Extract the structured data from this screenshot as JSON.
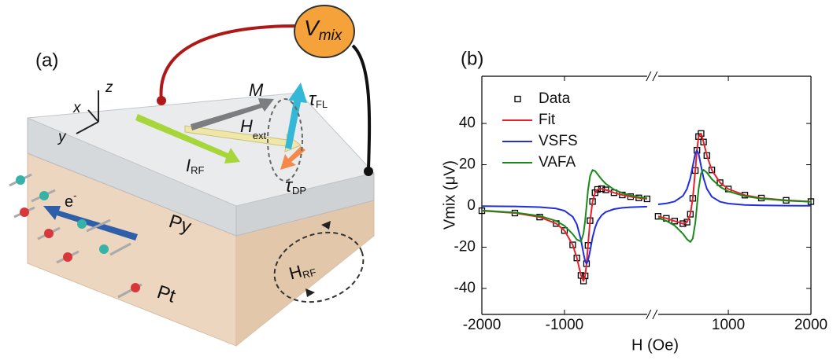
{
  "schematic": {
    "panel_label": "(a)",
    "vmix": [
      "V",
      "mix"
    ],
    "axis_x": "x",
    "axis_y": "y",
    "axis_z": "z",
    "m": "M",
    "tau_fl": [
      "τ",
      "FL"
    ],
    "h_ext": [
      "H",
      "ext"
    ],
    "i_rf": [
      "I",
      "RF"
    ],
    "tau_dp": [
      "τ",
      "DP"
    ],
    "electron": [
      "e",
      "-"
    ],
    "py": "Py",
    "pt": "Pt",
    "h_rf": [
      "H",
      "RF"
    ]
  },
  "chart_data": {
    "type": "line",
    "panel_label": "(b)",
    "x_label": "H (Oe)",
    "y_label": "Vmix (μV)",
    "xlim": [
      -2000,
      2000
    ],
    "xbreak": [
      0,
      150
    ],
    "xticks": [
      -2000,
      -1000,
      1000,
      2000
    ],
    "ylim": [
      -52.6,
      62.9
    ],
    "yticks": [
      -40,
      -20,
      0,
      20,
      40
    ],
    "legend": "upper left",
    "x": [
      -2000,
      -1600,
      -1300,
      -1100,
      -1000,
      -900,
      -850,
      -800,
      -770,
      -750,
      -733,
      -715,
      -690,
      -660,
      -630,
      -600,
      -550,
      -500,
      -400,
      -300,
      -200,
      -100,
      0,
      null,
      150,
      250,
      350,
      450,
      500,
      540,
      570,
      600,
      620,
      640,
      670,
      700,
      740,
      800,
      900,
      1000,
      1200,
      1400,
      1700,
      2000
    ],
    "series": [
      {
        "name": "Data",
        "color": "#000000",
        "marker": "square",
        "values": [
          -2.31,
          -3.44,
          -5.39,
          -8.55,
          -11.93,
          -18.87,
          -25.23,
          -33.69,
          -36.4,
          -33.91,
          -28,
          -19.15,
          -7.12,
          2.15,
          6.42,
          8.02,
          8.36,
          7.8,
          6.42,
          5.33,
          4.52,
          3.91,
          3.44,
          null,
          -5.03,
          -6.02,
          -7.35,
          -8.58,
          -7.84,
          -4.0,
          3.69,
          17.17,
          27,
          33.65,
          35.15,
          31.0,
          24.46,
          17.44,
          11.29,
          8.21,
          5.24,
          3.83,
          2.73,
          2.11
        ]
      },
      {
        "name": "Fit",
        "color": "#e8202a",
        "marker": "line",
        "values": [
          -2.31,
          -3.44,
          -5.39,
          -8.55,
          -11.93,
          -18.87,
          -25.23,
          -33.69,
          -36.4,
          -33.91,
          -28,
          -19.15,
          -7.12,
          2.15,
          6.42,
          8.02,
          8.36,
          7.8,
          6.42,
          5.33,
          4.52,
          3.91,
          3.44,
          null,
          -5.03,
          -6.02,
          -7.35,
          -8.58,
          -7.84,
          -4.0,
          3.69,
          17.17,
          27,
          33.65,
          35.15,
          31.0,
          24.46,
          17.44,
          11.29,
          8.21,
          5.24,
          3.83,
          2.73,
          2.11
        ]
      },
      {
        "name": "VSFS",
        "color": "#1f2fe0",
        "marker": "line",
        "values": [
          -0.11,
          -0.24,
          -0.55,
          -1.27,
          -2.31,
          -5.23,
          -8.92,
          -16.46,
          -23.07,
          -26.79,
          -28,
          -26.65,
          -21.72,
          -15.28,
          -10.54,
          -7.44,
          -4.49,
          -2.95,
          -1.53,
          -0.92,
          -0.62,
          -0.44,
          -0.33,
          null,
          0.76,
          1.21,
          2.18,
          4.9,
          8.31,
          13.5,
          19.42,
          25.41,
          27,
          25.41,
          19.42,
          13.5,
          8.31,
          4.45,
          2.04,
          1.15,
          0.5,
          0.28,
          0.15,
          0.09
        ]
      },
      {
        "name": "VAFA",
        "color": "#1a8a1a",
        "marker": "line",
        "values": [
          -2.2,
          -3.2,
          -4.84,
          -7.28,
          -9.62,
          -13.64,
          -16.31,
          -17.23,
          -13.33,
          -7.12,
          0,
          7.5,
          14.6,
          17.43,
          16.96,
          15.46,
          12.85,
          10.75,
          7.95,
          6.25,
          5.14,
          4.35,
          3.77,
          null,
          -5.79,
          -7.23,
          -9.53,
          -13.48,
          -16.15,
          -17.5,
          -15.73,
          -8.24,
          0,
          8.24,
          15.73,
          17.5,
          16.15,
          12.99,
          9.25,
          7.06,
          4.74,
          3.55,
          2.58,
          2.02
        ]
      }
    ]
  }
}
